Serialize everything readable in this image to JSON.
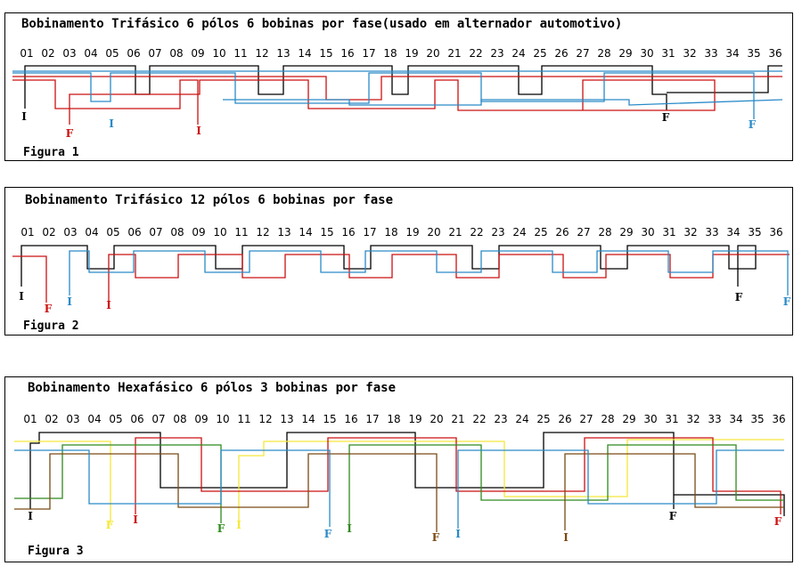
{
  "slots": [
    "01",
    "02",
    "03",
    "04",
    "05",
    "06",
    "07",
    "08",
    "09",
    "10",
    "11",
    "12",
    "13",
    "14",
    "15",
    "16",
    "17",
    "18",
    "19",
    "20",
    "21",
    "22",
    "23",
    "24",
    "25",
    "26",
    "27",
    "28",
    "29",
    "30",
    "31",
    "32",
    "33",
    "34",
    "35",
    "36"
  ],
  "colors": {
    "black": "#000000",
    "red": "#cc1111",
    "blue": "#2a8ac8",
    "yellow": "#f5e83a",
    "green": "#2f8a1e",
    "brown": "#7a4a14"
  },
  "figure1": {
    "title": "Bobinamento Trifásico 6 pólos 6 bobinas por fase(usado em alternador automotivo)",
    "caption": "Figura 1",
    "labels": [
      {
        "text": "I",
        "color": "black"
      },
      {
        "text": "F",
        "color": "red"
      },
      {
        "text": "I",
        "color": "blue"
      },
      {
        "text": "I",
        "color": "red"
      },
      {
        "text": "F",
        "color": "black"
      },
      {
        "text": "F",
        "color": "blue"
      }
    ]
  },
  "figure2": {
    "title": "Bobinamento Trifásico 12 pólos 6 bobinas por fase",
    "caption": "Figura 2",
    "labels": [
      {
        "text": "I",
        "color": "black"
      },
      {
        "text": "F",
        "color": "red"
      },
      {
        "text": "I",
        "color": "blue"
      },
      {
        "text": "I",
        "color": "red"
      },
      {
        "text": "F",
        "color": "black"
      },
      {
        "text": "F",
        "color": "blue"
      }
    ]
  },
  "figure3": {
    "title": "Bobinamento Hexafásico 6 pólos 3 bobinas por fase",
    "caption": "Figura 3",
    "labels": [
      {
        "text": "I",
        "color": "black"
      },
      {
        "text": "F",
        "color": "yellow"
      },
      {
        "text": "I",
        "color": "red"
      },
      {
        "text": "F",
        "color": "green"
      },
      {
        "text": "I",
        "color": "yellow"
      },
      {
        "text": "F",
        "color": "blue"
      },
      {
        "text": "I",
        "color": "green"
      },
      {
        "text": "F",
        "color": "brown"
      },
      {
        "text": "I",
        "color": "blue"
      },
      {
        "text": "I",
        "color": "brown"
      },
      {
        "text": "F",
        "color": "black"
      },
      {
        "text": "F",
        "color": "red"
      }
    ]
  }
}
